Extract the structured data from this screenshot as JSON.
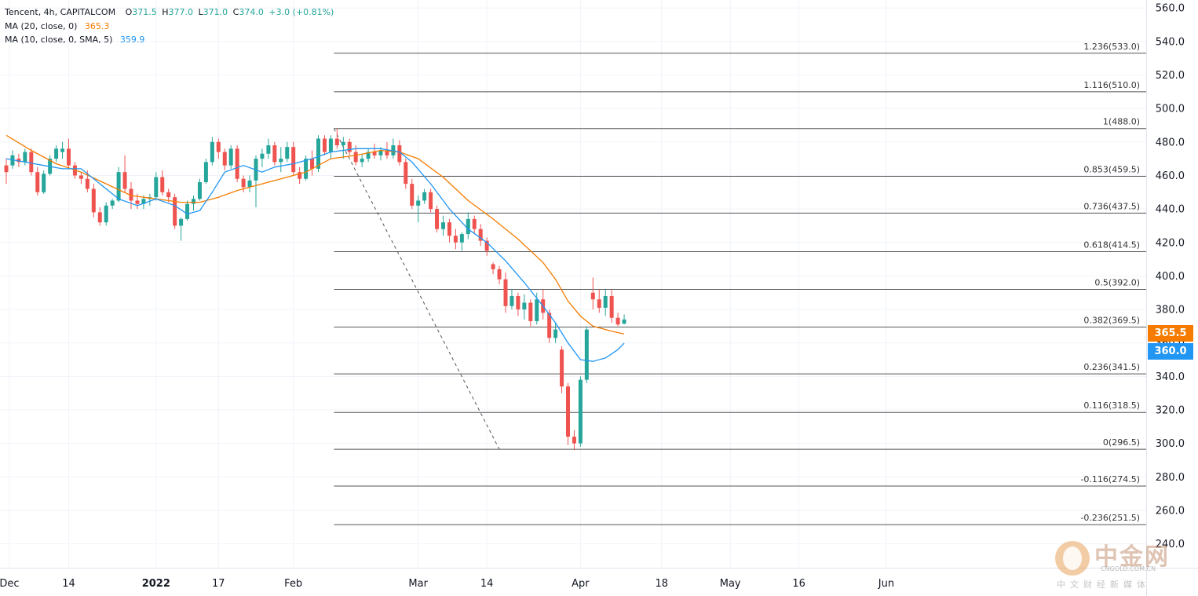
{
  "legend": {
    "symbol": "Tencent, 4h, CAPITALCOM",
    "ohlc": [
      {
        "k": "O",
        "v": "371.5"
      },
      {
        "k": "H",
        "v": "377.0"
      },
      {
        "k": "L",
        "v": "371.0"
      },
      {
        "k": "C",
        "v": "374.0"
      },
      {
        "k": "",
        "v": "+3.0 (+0.81%)"
      }
    ],
    "ma20_label": "MA (20, close, 0)",
    "ma20_value": "365.3",
    "ma10_label": "MA (10, close, 0, SMA, 5)",
    "ma10_value": "359.9"
  },
  "price_tags": {
    "ma20": "365.5",
    "ma10": "360.0"
  },
  "watermark": {
    "brand": "中金网",
    "url": "CNGOLD.COM.CN",
    "sub": "中文财经新媒体"
  },
  "colors": {
    "up": "#26a69a",
    "down": "#ef5350",
    "ma20": "#f57c00",
    "ma10": "#2196f3",
    "fib_line": "#555555",
    "grid": "#f0f3fa",
    "axis_text": "#131722"
  },
  "chart_data": {
    "type": "candlestick",
    "title": "Tencent, 4h, CAPITALCOM",
    "ylim": [
      236,
      562
    ],
    "y_ticks": [
      240,
      260,
      280,
      300,
      320,
      340,
      360,
      380,
      400,
      420,
      440,
      460,
      480,
      500,
      520,
      540,
      560
    ],
    "x_ticks": [
      "Dec",
      "14",
      "2022",
      "17",
      "Feb",
      "Mar",
      "14",
      "Apr",
      "18",
      "May",
      "16",
      "Jun"
    ],
    "x_index_range": [
      0,
      155
    ],
    "x_tick_index": [
      0.5,
      10,
      24,
      34,
      46,
      66,
      77,
      92,
      105,
      116,
      127,
      141
    ],
    "fibonacci": [
      {
        "ratio": "1.236",
        "price": 533.0,
        "label": "1.236(533.0)"
      },
      {
        "ratio": "1.116",
        "price": 510.0,
        "label": "1.116(510.0)"
      },
      {
        "ratio": "1",
        "price": 488.0,
        "label": "1(488.0)"
      },
      {
        "ratio": "0.853",
        "price": 459.5,
        "label": "0.853(459.5)"
      },
      {
        "ratio": "0.736",
        "price": 437.5,
        "label": "0.736(437.5)"
      },
      {
        "ratio": "0.618",
        "price": 414.5,
        "label": "0.618(414.5)"
      },
      {
        "ratio": "0.5",
        "price": 392.0,
        "label": "0.5(392.0)"
      },
      {
        "ratio": "0.382",
        "price": 369.5,
        "label": "0.382(369.5)"
      },
      {
        "ratio": "0.236",
        "price": 341.5,
        "label": "0.236(341.5)"
      },
      {
        "ratio": "0.116",
        "price": 318.5,
        "label": "0.116(318.5)"
      },
      {
        "ratio": "0",
        "price": 296.5,
        "label": "0(296.5)"
      },
      {
        "ratio": "-0.116",
        "price": 274.5,
        "label": "-0.116(274.5)"
      },
      {
        "ratio": "-0.236",
        "price": 251.5,
        "label": "-0.236(251.5)"
      }
    ],
    "fib_x_index_range": [
      52.5,
      148
    ],
    "trend_line": {
      "from": [
        52.5,
        488.0
      ],
      "to": [
        79,
        296.5
      ]
    },
    "candles": [
      {
        "i": 0,
        "o": 466,
        "h": 470,
        "l": 455,
        "c": 462
      },
      {
        "i": 1,
        "o": 466,
        "h": 475,
        "l": 464,
        "c": 472
      },
      {
        "i": 2,
        "o": 470,
        "h": 473,
        "l": 465,
        "c": 468
      },
      {
        "i": 3,
        "o": 468,
        "h": 476,
        "l": 466,
        "c": 474
      },
      {
        "i": 4,
        "o": 474,
        "h": 476,
        "l": 460,
        "c": 462
      },
      {
        "i": 5,
        "o": 462,
        "h": 465,
        "l": 448,
        "c": 450
      },
      {
        "i": 6,
        "o": 450,
        "h": 463,
        "l": 449,
        "c": 461
      },
      {
        "i": 7,
        "o": 461,
        "h": 472,
        "l": 460,
        "c": 470
      },
      {
        "i": 8,
        "o": 470,
        "h": 478,
        "l": 468,
        "c": 476
      },
      {
        "i": 9,
        "o": 474,
        "h": 480,
        "l": 470,
        "c": 476
      },
      {
        "i": 10,
        "o": 476,
        "h": 482,
        "l": 464,
        "c": 466
      },
      {
        "i": 11,
        "o": 466,
        "h": 468,
        "l": 458,
        "c": 460
      },
      {
        "i": 12,
        "o": 460,
        "h": 462,
        "l": 455,
        "c": 458
      },
      {
        "i": 13,
        "o": 458,
        "h": 463,
        "l": 450,
        "c": 452
      },
      {
        "i": 14,
        "o": 452,
        "h": 455,
        "l": 435,
        "c": 438
      },
      {
        "i": 15,
        "o": 438,
        "h": 441,
        "l": 430,
        "c": 432
      },
      {
        "i": 16,
        "o": 432,
        "h": 444,
        "l": 430,
        "c": 442
      },
      {
        "i": 17,
        "o": 442,
        "h": 446,
        "l": 440,
        "c": 445
      },
      {
        "i": 18,
        "o": 445,
        "h": 465,
        "l": 444,
        "c": 462
      },
      {
        "i": 19,
        "o": 462,
        "h": 472,
        "l": 450,
        "c": 452
      },
      {
        "i": 20,
        "o": 452,
        "h": 456,
        "l": 440,
        "c": 445
      },
      {
        "i": 21,
        "o": 445,
        "h": 449,
        "l": 440,
        "c": 443
      },
      {
        "i": 22,
        "o": 443,
        "h": 448,
        "l": 440,
        "c": 446
      },
      {
        "i": 23,
        "o": 446,
        "h": 449,
        "l": 442,
        "c": 447
      },
      {
        "i": 24,
        "o": 447,
        "h": 462,
        "l": 445,
        "c": 459
      },
      {
        "i": 25,
        "o": 459,
        "h": 463,
        "l": 448,
        "c": 450
      },
      {
        "i": 26,
        "o": 450,
        "h": 452,
        "l": 444,
        "c": 447
      },
      {
        "i": 27,
        "o": 447,
        "h": 449,
        "l": 428,
        "c": 430
      },
      {
        "i": 28,
        "o": 430,
        "h": 435,
        "l": 421,
        "c": 434
      },
      {
        "i": 29,
        "o": 434,
        "h": 445,
        "l": 433,
        "c": 443
      },
      {
        "i": 30,
        "o": 443,
        "h": 448,
        "l": 439,
        "c": 446
      },
      {
        "i": 31,
        "o": 446,
        "h": 458,
        "l": 445,
        "c": 456
      },
      {
        "i": 32,
        "o": 456,
        "h": 470,
        "l": 455,
        "c": 468
      },
      {
        "i": 33,
        "o": 468,
        "h": 483,
        "l": 466,
        "c": 480
      },
      {
        "i": 34,
        "o": 480,
        "h": 482,
        "l": 470,
        "c": 474
      },
      {
        "i": 35,
        "o": 474,
        "h": 476,
        "l": 463,
        "c": 466
      },
      {
        "i": 36,
        "o": 466,
        "h": 478,
        "l": 464,
        "c": 476
      },
      {
        "i": 37,
        "o": 476,
        "h": 478,
        "l": 456,
        "c": 458
      },
      {
        "i": 38,
        "o": 458,
        "h": 460,
        "l": 450,
        "c": 453
      },
      {
        "i": 39,
        "o": 453,
        "h": 460,
        "l": 450,
        "c": 457
      },
      {
        "i": 40,
        "o": 457,
        "h": 472,
        "l": 441,
        "c": 470
      },
      {
        "i": 41,
        "o": 470,
        "h": 476,
        "l": 465,
        "c": 473
      },
      {
        "i": 42,
        "o": 473,
        "h": 482,
        "l": 470,
        "c": 478
      },
      {
        "i": 43,
        "o": 478,
        "h": 480,
        "l": 466,
        "c": 468
      },
      {
        "i": 44,
        "o": 468,
        "h": 477,
        "l": 462,
        "c": 470
      },
      {
        "i": 45,
        "o": 470,
        "h": 480,
        "l": 468,
        "c": 477
      },
      {
        "i": 46,
        "o": 477,
        "h": 480,
        "l": 460,
        "c": 462
      },
      {
        "i": 47,
        "o": 462,
        "h": 465,
        "l": 455,
        "c": 458
      },
      {
        "i": 48,
        "o": 458,
        "h": 472,
        "l": 457,
        "c": 470
      },
      {
        "i": 49,
        "o": 470,
        "h": 475,
        "l": 460,
        "c": 464
      },
      {
        "i": 50,
        "o": 464,
        "h": 484,
        "l": 462,
        "c": 482
      },
      {
        "i": 51,
        "o": 482,
        "h": 484,
        "l": 472,
        "c": 474
      },
      {
        "i": 52,
        "o": 474,
        "h": 484,
        "l": 470,
        "c": 482
      },
      {
        "i": 53,
        "o": 482,
        "h": 488,
        "l": 476,
        "c": 478
      },
      {
        "i": 54,
        "o": 478,
        "h": 483,
        "l": 470,
        "c": 480
      },
      {
        "i": 55,
        "o": 480,
        "h": 482,
        "l": 472,
        "c": 474
      },
      {
        "i": 56,
        "o": 474,
        "h": 478,
        "l": 466,
        "c": 468
      },
      {
        "i": 57,
        "o": 468,
        "h": 473,
        "l": 465,
        "c": 470
      },
      {
        "i": 58,
        "o": 470,
        "h": 476,
        "l": 468,
        "c": 474
      },
      {
        "i": 59,
        "o": 474,
        "h": 479,
        "l": 470,
        "c": 472
      },
      {
        "i": 60,
        "o": 472,
        "h": 477,
        "l": 469,
        "c": 475
      },
      {
        "i": 61,
        "o": 475,
        "h": 480,
        "l": 470,
        "c": 472
      },
      {
        "i": 62,
        "o": 472,
        "h": 482,
        "l": 470,
        "c": 478
      },
      {
        "i": 63,
        "o": 478,
        "h": 481,
        "l": 466,
        "c": 468
      },
      {
        "i": 64,
        "o": 468,
        "h": 470,
        "l": 452,
        "c": 455
      },
      {
        "i": 65,
        "o": 455,
        "h": 458,
        "l": 440,
        "c": 442
      },
      {
        "i": 66,
        "o": 442,
        "h": 448,
        "l": 432,
        "c": 445
      },
      {
        "i": 67,
        "o": 445,
        "h": 452,
        "l": 443,
        "c": 450
      },
      {
        "i": 68,
        "o": 450,
        "h": 452,
        "l": 438,
        "c": 440
      },
      {
        "i": 69,
        "o": 440,
        "h": 442,
        "l": 426,
        "c": 428
      },
      {
        "i": 70,
        "o": 428,
        "h": 436,
        "l": 424,
        "c": 432
      },
      {
        "i": 71,
        "o": 432,
        "h": 434,
        "l": 420,
        "c": 424
      },
      {
        "i": 72,
        "o": 424,
        "h": 428,
        "l": 416,
        "c": 420
      },
      {
        "i": 73,
        "o": 420,
        "h": 426,
        "l": 415,
        "c": 425
      },
      {
        "i": 74,
        "o": 425,
        "h": 438,
        "l": 422,
        "c": 434
      },
      {
        "i": 75,
        "o": 434,
        "h": 436,
        "l": 425,
        "c": 428
      },
      {
        "i": 76,
        "o": 428,
        "h": 431,
        "l": 418,
        "c": 421
      },
      {
        "i": 77,
        "o": 421,
        "h": 423,
        "l": 412,
        "c": 415
      },
      {
        "i": 78,
        "o": 407,
        "h": 408,
        "l": 401,
        "c": 404
      },
      {
        "i": 79,
        "o": 404,
        "h": 406,
        "l": 395,
        "c": 398
      },
      {
        "i": 80,
        "o": 398,
        "h": 402,
        "l": 378,
        "c": 382
      },
      {
        "i": 81,
        "o": 382,
        "h": 392,
        "l": 380,
        "c": 388
      },
      {
        "i": 82,
        "o": 388,
        "h": 390,
        "l": 376,
        "c": 380
      },
      {
        "i": 83,
        "o": 380,
        "h": 389,
        "l": 374,
        "c": 384
      },
      {
        "i": 84,
        "o": 384,
        "h": 386,
        "l": 370,
        "c": 373
      },
      {
        "i": 85,
        "o": 373,
        "h": 390,
        "l": 371,
        "c": 386
      },
      {
        "i": 86,
        "o": 386,
        "h": 392,
        "l": 374,
        "c": 378
      },
      {
        "i": 87,
        "o": 378,
        "h": 380,
        "l": 360,
        "c": 363
      },
      {
        "i": 88,
        "o": 363,
        "h": 372,
        "l": 360,
        "c": 368
      },
      {
        "i": 89,
        "o": 356,
        "h": 358,
        "l": 330,
        "c": 334
      },
      {
        "i": 90,
        "o": 334,
        "h": 336,
        "l": 299,
        "c": 304
      },
      {
        "i": 91,
        "o": 304,
        "h": 308,
        "l": 296,
        "c": 300
      },
      {
        "i": 92,
        "o": 300,
        "h": 340,
        "l": 298,
        "c": 338
      },
      {
        "i": 93,
        "o": 338,
        "h": 370,
        "l": 336,
        "c": 368
      },
      {
        "i": 94,
        "o": 390,
        "h": 399,
        "l": 380,
        "c": 386
      },
      {
        "i": 95,
        "o": 386,
        "h": 392,
        "l": 378,
        "c": 381
      },
      {
        "i": 96,
        "o": 381,
        "h": 392,
        "l": 376,
        "c": 388
      },
      {
        "i": 97,
        "o": 388,
        "h": 392,
        "l": 372,
        "c": 375
      },
      {
        "i": 98,
        "o": 375,
        "h": 378,
        "l": 370,
        "c": 371
      },
      {
        "i": 99,
        "o": 371.5,
        "h": 377,
        "l": 371,
        "c": 374
      }
    ],
    "ma20": [
      [
        0,
        484
      ],
      [
        4,
        475
      ],
      [
        8,
        467
      ],
      [
        12,
        462
      ],
      [
        16,
        455
      ],
      [
        20,
        448
      ],
      [
        24,
        446
      ],
      [
        28,
        444
      ],
      [
        31,
        444
      ],
      [
        34,
        447
      ],
      [
        37,
        451
      ],
      [
        40,
        454
      ],
      [
        44,
        458
      ],
      [
        48,
        462
      ],
      [
        52,
        470
      ],
      [
        56,
        472
      ],
      [
        60,
        475
      ],
      [
        63,
        474
      ],
      [
        66,
        470
      ],
      [
        70,
        459
      ],
      [
        74,
        445
      ],
      [
        78,
        434
      ],
      [
        82,
        422
      ],
      [
        86,
        408
      ],
      [
        88,
        398
      ],
      [
        90,
        385
      ],
      [
        92,
        376
      ],
      [
        94,
        370
      ],
      [
        97,
        367
      ],
      [
        99,
        365.3
      ]
    ],
    "ma10": [
      [
        0,
        470
      ],
      [
        3,
        468
      ],
      [
        6,
        466
      ],
      [
        9,
        464
      ],
      [
        12,
        464
      ],
      [
        15,
        455
      ],
      [
        18,
        446
      ],
      [
        21,
        442
      ],
      [
        24,
        446
      ],
      [
        27,
        442
      ],
      [
        29,
        437
      ],
      [
        31,
        439
      ],
      [
        33,
        450
      ],
      [
        35,
        462
      ],
      [
        38,
        466
      ],
      [
        41,
        462
      ],
      [
        43,
        465
      ],
      [
        46,
        467
      ],
      [
        49,
        470
      ],
      [
        52,
        474
      ],
      [
        56,
        476
      ],
      [
        60,
        476
      ],
      [
        63,
        474
      ],
      [
        65,
        468
      ],
      [
        68,
        455
      ],
      [
        71,
        440
      ],
      [
        74,
        428
      ],
      [
        77,
        420
      ],
      [
        80,
        409
      ],
      [
        83,
        396
      ],
      [
        86,
        382
      ],
      [
        88,
        372
      ],
      [
        90,
        360
      ],
      [
        92,
        350
      ],
      [
        94,
        349
      ],
      [
        96,
        351
      ],
      [
        98,
        356
      ],
      [
        99,
        359.9
      ]
    ]
  }
}
